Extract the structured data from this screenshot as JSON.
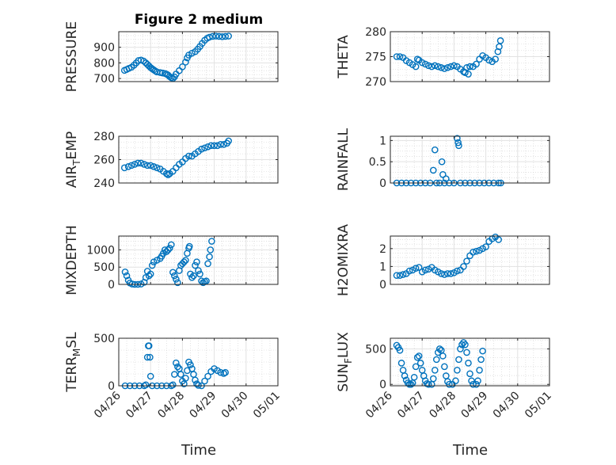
{
  "figure": {
    "title": "Figure 2 medium",
    "xlabel": "Time",
    "x_tick_labels": [
      "04/26",
      "04/27",
      "04/28",
      "04/29",
      "04/30",
      "05/01"
    ],
    "marker_color": "#0072BD"
  },
  "chart_data": [
    {
      "type": "scatter",
      "ylabel": "PRESSURE",
      "xlim": [
        "04/26",
        "05/01"
      ],
      "ylim": [
        680,
        1000
      ],
      "y_ticks": [
        700,
        800,
        900
      ],
      "y_tick_labels": [
        "700",
        "800",
        "900"
      ],
      "grid": true,
      "x_unit": "days since 04/26",
      "points": [
        [
          0.18,
          752
        ],
        [
          0.25,
          758
        ],
        [
          0.32,
          765
        ],
        [
          0.4,
          772
        ],
        [
          0.48,
          785
        ],
        [
          0.55,
          800
        ],
        [
          0.62,
          815
        ],
        [
          0.7,
          818
        ],
        [
          0.78,
          812
        ],
        [
          0.85,
          800
        ],
        [
          0.9,
          790
        ],
        [
          0.95,
          780
        ],
        [
          1.0,
          770
        ],
        [
          1.05,
          762
        ],
        [
          1.1,
          755
        ],
        [
          1.15,
          748
        ],
        [
          1.2,
          742
        ],
        [
          1.3,
          738
        ],
        [
          1.38,
          735
        ],
        [
          1.45,
          732
        ],
        [
          1.5,
          728
        ],
        [
          1.55,
          722
        ],
        [
          1.6,
          712
        ],
        [
          1.65,
          705
        ],
        [
          1.7,
          700
        ],
        [
          1.75,
          710
        ],
        [
          1.8,
          728
        ],
        [
          1.9,
          750
        ],
        [
          2.0,
          775
        ],
        [
          2.1,
          805
        ],
        [
          2.15,
          832
        ],
        [
          2.2,
          850
        ],
        [
          2.3,
          862
        ],
        [
          2.4,
          872
        ],
        [
          2.48,
          888
        ],
        [
          2.55,
          905
        ],
        [
          2.62,
          925
        ],
        [
          2.7,
          945
        ],
        [
          2.78,
          958
        ],
        [
          2.85,
          965
        ],
        [
          2.95,
          970
        ],
        [
          3.05,
          972
        ],
        [
          3.15,
          970
        ],
        [
          3.25,
          968
        ],
        [
          3.35,
          970
        ],
        [
          3.45,
          972
        ]
      ]
    },
    {
      "type": "scatter",
      "ylabel": "THETA",
      "xlim": [
        "04/26",
        "05/01"
      ],
      "ylim": [
        270,
        280
      ],
      "y_ticks": [
        270,
        275,
        280
      ],
      "y_tick_labels": [
        "270",
        "275",
        "280"
      ],
      "grid": true,
      "x_unit": "days since 04/26",
      "points": [
        [
          0.2,
          275.0
        ],
        [
          0.3,
          275.0
        ],
        [
          0.4,
          274.8
        ],
        [
          0.5,
          274.2
        ],
        [
          0.6,
          273.8
        ],
        [
          0.7,
          273.4
        ],
        [
          0.8,
          273.0
        ],
        [
          0.85,
          274.5
        ],
        [
          0.9,
          274.3
        ],
        [
          1.0,
          273.8
        ],
        [
          1.1,
          273.5
        ],
        [
          1.2,
          273.2
        ],
        [
          1.3,
          273.0
        ],
        [
          1.4,
          273.2
        ],
        [
          1.5,
          273.0
        ],
        [
          1.6,
          272.8
        ],
        [
          1.7,
          272.6
        ],
        [
          1.8,
          272.8
        ],
        [
          1.9,
          273.0
        ],
        [
          2.0,
          273.2
        ],
        [
          2.1,
          273.0
        ],
        [
          2.2,
          272.5
        ],
        [
          2.3,
          272.0
        ],
        [
          2.35,
          271.8
        ],
        [
          2.4,
          272.8
        ],
        [
          2.45,
          271.5
        ],
        [
          2.5,
          273.0
        ],
        [
          2.6,
          273.0
        ],
        [
          2.7,
          273.5
        ],
        [
          2.8,
          274.5
        ],
        [
          2.9,
          275.2
        ],
        [
          3.0,
          274.8
        ],
        [
          3.1,
          274.3
        ],
        [
          3.2,
          274.0
        ],
        [
          3.3,
          274.5
        ],
        [
          3.38,
          276.0
        ],
        [
          3.42,
          277.0
        ],
        [
          3.46,
          278.2
        ]
      ]
    },
    {
      "type": "scatter",
      "ylabel": "AIR_TEMP",
      "xlim": [
        "04/26",
        "05/01"
      ],
      "ylim": [
        240,
        280
      ],
      "y_ticks": [
        240,
        260,
        280
      ],
      "y_tick_labels": [
        "240",
        "260",
        "280"
      ],
      "grid": true,
      "x_unit": "days since 04/26",
      "points": [
        [
          0.18,
          253
        ],
        [
          0.3,
          254
        ],
        [
          0.4,
          255
        ],
        [
          0.5,
          256
        ],
        [
          0.6,
          257
        ],
        [
          0.7,
          257
        ],
        [
          0.8,
          256
        ],
        [
          0.9,
          255
        ],
        [
          1.0,
          255
        ],
        [
          1.1,
          254
        ],
        [
          1.2,
          253
        ],
        [
          1.3,
          252
        ],
        [
          1.4,
          250
        ],
        [
          1.5,
          248
        ],
        [
          1.55,
          247
        ],
        [
          1.6,
          248
        ],
        [
          1.7,
          250
        ],
        [
          1.8,
          253
        ],
        [
          1.9,
          256
        ],
        [
          2.0,
          258
        ],
        [
          2.1,
          261
        ],
        [
          2.2,
          263
        ],
        [
          2.3,
          263
        ],
        [
          2.4,
          265
        ],
        [
          2.5,
          267
        ],
        [
          2.6,
          269
        ],
        [
          2.7,
          270
        ],
        [
          2.8,
          271
        ],
        [
          2.9,
          272
        ],
        [
          3.0,
          272
        ],
        [
          3.1,
          272
        ],
        [
          3.2,
          273
        ],
        [
          3.3,
          273
        ],
        [
          3.4,
          274
        ],
        [
          3.45,
          276
        ]
      ]
    },
    {
      "type": "scatter",
      "ylabel": "RAINFALL",
      "xlim": [
        "04/26",
        "05/01"
      ],
      "ylim": [
        0,
        1.1
      ],
      "y_ticks": [
        0,
        0.5,
        1
      ],
      "y_tick_labels": [
        "0",
        "0.5",
        "1"
      ],
      "grid": true,
      "x_unit": "days since 04/26",
      "points": [
        [
          0.2,
          0
        ],
        [
          0.35,
          0
        ],
        [
          0.5,
          0
        ],
        [
          0.65,
          0
        ],
        [
          0.8,
          0
        ],
        [
          0.95,
          0
        ],
        [
          1.1,
          0
        ],
        [
          1.25,
          0
        ],
        [
          1.35,
          0.3
        ],
        [
          1.4,
          0.78
        ],
        [
          1.45,
          0
        ],
        [
          1.55,
          0
        ],
        [
          1.62,
          0.5
        ],
        [
          1.65,
          0.2
        ],
        [
          1.7,
          0
        ],
        [
          1.75,
          0.1
        ],
        [
          1.85,
          0
        ],
        [
          2.0,
          0
        ],
        [
          2.1,
          1.05
        ],
        [
          2.13,
          0.95
        ],
        [
          2.15,
          0.88
        ],
        [
          2.2,
          0
        ],
        [
          2.35,
          0
        ],
        [
          2.5,
          0
        ],
        [
          2.65,
          0
        ],
        [
          2.8,
          0
        ],
        [
          2.95,
          0
        ],
        [
          3.1,
          0
        ],
        [
          3.25,
          0
        ],
        [
          3.4,
          0
        ],
        [
          3.47,
          0
        ]
      ]
    },
    {
      "type": "scatter",
      "ylabel": "MIXDEPTH",
      "xlim": [
        "04/26",
        "05/01"
      ],
      "ylim": [
        0,
        1400
      ],
      "y_ticks": [
        0,
        500,
        1000
      ],
      "y_tick_labels": [
        "0",
        "500",
        "1000"
      ],
      "grid": true,
      "x_unit": "days since 04/26",
      "points": [
        [
          0.2,
          360
        ],
        [
          0.25,
          250
        ],
        [
          0.3,
          120
        ],
        [
          0.35,
          40
        ],
        [
          0.42,
          10
        ],
        [
          0.5,
          0
        ],
        [
          0.6,
          0
        ],
        [
          0.7,
          10
        ],
        [
          0.8,
          60
        ],
        [
          0.85,
          200
        ],
        [
          0.9,
          380
        ],
        [
          0.95,
          250
        ],
        [
          1.0,
          300
        ],
        [
          1.05,
          550
        ],
        [
          1.1,
          650
        ],
        [
          1.2,
          700
        ],
        [
          1.3,
          750
        ],
        [
          1.35,
          820
        ],
        [
          1.4,
          900
        ],
        [
          1.45,
          1000
        ],
        [
          1.5,
          950
        ],
        [
          1.55,
          1000
        ],
        [
          1.6,
          1050
        ],
        [
          1.65,
          1150
        ],
        [
          1.7,
          350
        ],
        [
          1.75,
          250
        ],
        [
          1.8,
          150
        ],
        [
          1.85,
          50
        ],
        [
          1.9,
          400
        ],
        [
          1.95,
          550
        ],
        [
          2.0,
          600
        ],
        [
          2.05,
          650
        ],
        [
          2.1,
          700
        ],
        [
          2.15,
          900
        ],
        [
          2.2,
          1050
        ],
        [
          2.22,
          1100
        ],
        [
          2.25,
          300
        ],
        [
          2.3,
          200
        ],
        [
          2.35,
          250
        ],
        [
          2.4,
          550
        ],
        [
          2.45,
          650
        ],
        [
          2.5,
          400
        ],
        [
          2.55,
          300
        ],
        [
          2.6,
          100
        ],
        [
          2.65,
          50
        ],
        [
          2.7,
          80
        ],
        [
          2.75,
          100
        ],
        [
          2.8,
          600
        ],
        [
          2.85,
          800
        ],
        [
          2.88,
          1000
        ],
        [
          2.92,
          1250
        ]
      ]
    },
    {
      "type": "scatter",
      "ylabel": "H2OMIXRA",
      "xlim": [
        "04/26",
        "05/01"
      ],
      "ylim": [
        0,
        2.7
      ],
      "y_ticks": [
        0,
        1,
        2
      ],
      "y_tick_labels": [
        "0",
        "1",
        "2"
      ],
      "grid": true,
      "x_unit": "days since 04/26",
      "points": [
        [
          0.2,
          0.5
        ],
        [
          0.3,
          0.5
        ],
        [
          0.4,
          0.55
        ],
        [
          0.5,
          0.6
        ],
        [
          0.6,
          0.75
        ],
        [
          0.7,
          0.8
        ],
        [
          0.8,
          0.9
        ],
        [
          0.9,
          0.95
        ],
        [
          1.0,
          0.7
        ],
        [
          1.1,
          0.8
        ],
        [
          1.2,
          0.85
        ],
        [
          1.3,
          0.95
        ],
        [
          1.4,
          0.8
        ],
        [
          1.5,
          0.7
        ],
        [
          1.6,
          0.6
        ],
        [
          1.7,
          0.55
        ],
        [
          1.8,
          0.6
        ],
        [
          1.9,
          0.6
        ],
        [
          2.0,
          0.65
        ],
        [
          2.1,
          0.75
        ],
        [
          2.2,
          0.8
        ],
        [
          2.3,
          1.0
        ],
        [
          2.4,
          1.3
        ],
        [
          2.5,
          1.6
        ],
        [
          2.6,
          1.8
        ],
        [
          2.7,
          1.85
        ],
        [
          2.8,
          1.9
        ],
        [
          2.9,
          2.0
        ],
        [
          3.0,
          2.1
        ],
        [
          3.1,
          2.4
        ],
        [
          3.2,
          2.55
        ],
        [
          3.3,
          2.65
        ],
        [
          3.4,
          2.5
        ]
      ]
    },
    {
      "type": "scatter",
      "ylabel": "TERR_MSL",
      "xlim": [
        "04/26",
        "05/01"
      ],
      "ylim": [
        0,
        500
      ],
      "y_ticks": [
        0,
        500
      ],
      "y_tick_labels": [
        "0",
        "500"
      ],
      "grid": true,
      "x_unit": "days since 04/26",
      "points": [
        [
          0.2,
          0
        ],
        [
          0.35,
          0
        ],
        [
          0.5,
          0
        ],
        [
          0.65,
          0
        ],
        [
          0.8,
          0
        ],
        [
          0.85,
          10
        ],
        [
          0.9,
          300
        ],
        [
          0.93,
          420
        ],
        [
          0.95,
          420
        ],
        [
          0.98,
          300
        ],
        [
          1.0,
          100
        ],
        [
          1.05,
          0
        ],
        [
          1.2,
          0
        ],
        [
          1.35,
          0
        ],
        [
          1.5,
          0
        ],
        [
          1.65,
          0
        ],
        [
          1.7,
          10
        ],
        [
          1.75,
          120
        ],
        [
          1.8,
          240
        ],
        [
          1.85,
          200
        ],
        [
          1.9,
          180
        ],
        [
          1.95,
          120
        ],
        [
          2.0,
          50
        ],
        [
          2.05,
          20
        ],
        [
          2.1,
          80
        ],
        [
          2.15,
          160
        ],
        [
          2.2,
          250
        ],
        [
          2.25,
          220
        ],
        [
          2.3,
          180
        ],
        [
          2.35,
          120
        ],
        [
          2.4,
          60
        ],
        [
          2.45,
          20
        ],
        [
          2.5,
          5
        ],
        [
          2.6,
          0
        ],
        [
          2.7,
          50
        ],
        [
          2.8,
          100
        ],
        [
          2.9,
          150
        ],
        [
          3.0,
          180
        ],
        [
          3.1,
          160
        ],
        [
          3.2,
          140
        ],
        [
          3.3,
          130
        ],
        [
          3.35,
          140
        ]
      ]
    },
    {
      "type": "scatter",
      "ylabel": "SUN_FLUX",
      "xlim": [
        "04/26",
        "05/01"
      ],
      "ylim": [
        -20,
        650
      ],
      "y_ticks": [
        0,
        500
      ],
      "y_tick_labels": [
        "0",
        "500"
      ],
      "grid": true,
      "x_unit": "days since 04/26",
      "points": [
        [
          0.2,
          550
        ],
        [
          0.25,
          520
        ],
        [
          0.3,
          480
        ],
        [
          0.35,
          300
        ],
        [
          0.4,
          200
        ],
        [
          0.45,
          120
        ],
        [
          0.5,
          60
        ],
        [
          0.55,
          20
        ],
        [
          0.6,
          0
        ],
        [
          0.65,
          0
        ],
        [
          0.7,
          20
        ],
        [
          0.75,
          100
        ],
        [
          0.8,
          250
        ],
        [
          0.85,
          380
        ],
        [
          0.9,
          400
        ],
        [
          0.95,
          300
        ],
        [
          1.0,
          200
        ],
        [
          1.05,
          120
        ],
        [
          1.1,
          50
        ],
        [
          1.15,
          10
        ],
        [
          1.2,
          0
        ],
        [
          1.3,
          0
        ],
        [
          1.35,
          80
        ],
        [
          1.4,
          200
        ],
        [
          1.45,
          350
        ],
        [
          1.5,
          450
        ],
        [
          1.55,
          500
        ],
        [
          1.6,
          480
        ],
        [
          1.65,
          400
        ],
        [
          1.7,
          250
        ],
        [
          1.75,
          120
        ],
        [
          1.8,
          40
        ],
        [
          1.85,
          0
        ],
        [
          1.95,
          0
        ],
        [
          2.05,
          50
        ],
        [
          2.1,
          200
        ],
        [
          2.15,
          350
        ],
        [
          2.2,
          500
        ],
        [
          2.25,
          560
        ],
        [
          2.3,
          590
        ],
        [
          2.35,
          560
        ],
        [
          2.4,
          450
        ],
        [
          2.45,
          300
        ],
        [
          2.5,
          150
        ],
        [
          2.55,
          50
        ],
        [
          2.6,
          0
        ],
        [
          2.7,
          0
        ],
        [
          2.75,
          50
        ],
        [
          2.8,
          200
        ],
        [
          2.85,
          350
        ],
        [
          2.9,
          470
        ]
      ]
    }
  ]
}
